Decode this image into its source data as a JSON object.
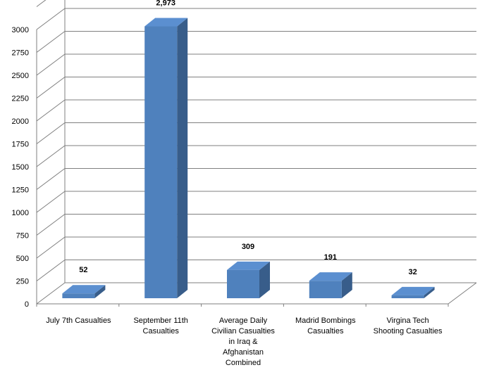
{
  "chart_data": {
    "type": "bar",
    "style": "3d-column",
    "categories": [
      "July 7th Casualties",
      "September 11th Casualties",
      "Average Daily Civilian Casualties in Iraq & Afghanistan Combined",
      "Madrid Bombings Casualties",
      "Virgina Tech Shooting Casualties"
    ],
    "category_lines": [
      [
        "July 7th Casualties"
      ],
      [
        "September 11th",
        "Casualties"
      ],
      [
        "Average Daily",
        "Civilian Casualties",
        "in Iraq &",
        "Afghanistan",
        "Combined"
      ],
      [
        "Madrid Bombings",
        "Casualties"
      ],
      [
        "Virgina Tech",
        "Shooting Casualties"
      ]
    ],
    "values": [
      52,
      2973,
      309,
      191,
      32
    ],
    "data_labels": [
      "52",
      "2,973",
      "309",
      "191",
      "32"
    ],
    "yticks": [
      "0",
      "250",
      "500",
      "750",
      "1000",
      "1250",
      "1500",
      "1750",
      "2000",
      "2250",
      "2500",
      "2750",
      "3000"
    ],
    "ylim": [
      0,
      3250
    ],
    "ytick_step": 250,
    "title": "",
    "xlabel": "",
    "ylabel": "",
    "grid": true,
    "legend": "none",
    "colors": {
      "bar_front": "#4f81bd",
      "bar_top": "#5b8fd0",
      "bar_side": "#385d8a",
      "grid": "#7f7f7f"
    }
  }
}
